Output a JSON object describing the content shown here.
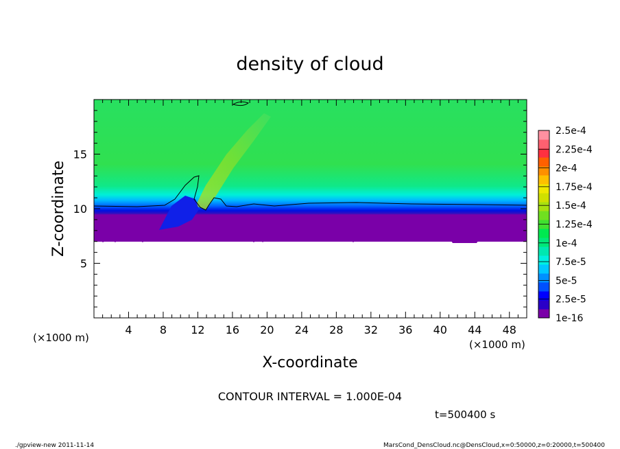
{
  "chart_data": {
    "type": "heatmap",
    "title": "density of cloud",
    "xlabel": "X-coordinate",
    "ylabel": "Z-coordinate",
    "x_unit_label": "(×1000 m)",
    "y_unit_label": "(×1000 m)",
    "xlim": [
      0,
      50
    ],
    "ylim": [
      0,
      20
    ],
    "x_ticks": [
      4,
      8,
      12,
      16,
      20,
      24,
      28,
      32,
      36,
      40,
      44,
      48
    ],
    "y_ticks": [
      5,
      10,
      15
    ],
    "colorbar": {
      "labels": [
        "1e-16",
        "2.5e-5",
        "5e-5",
        "7.5e-5",
        "1e-4",
        "1.25e-4",
        "1.5e-4",
        "1.75e-4",
        "2e-4",
        "2.25e-4",
        "2.5e-4"
      ],
      "colors": [
        "#7a00a8",
        "#2a00c8",
        "#0000ff",
        "#0050ff",
        "#0090ff",
        "#00c8ff",
        "#00f0e0",
        "#00e8b0",
        "#00e878",
        "#00e850",
        "#40e030",
        "#70e020",
        "#a8e010",
        "#d0e000",
        "#f0e800",
        "#ffc000",
        "#ff9000",
        "#ff6000",
        "#ff3040",
        "#ff6070",
        "#ff90a0"
      ]
    },
    "contour_interval_text": "CONTOUR INTERVAL = 1.000E-04",
    "cloud_base_km": 7.5,
    "contour_1e-4_height_km": 10.3,
    "time_text": "t=500400 s"
  },
  "footer": {
    "left": "./gpview-new   2011-11-14",
    "right": "MarsCond_DensCloud.nc@DensCloud,x=0:50000,z=0:20000,t=500400"
  }
}
